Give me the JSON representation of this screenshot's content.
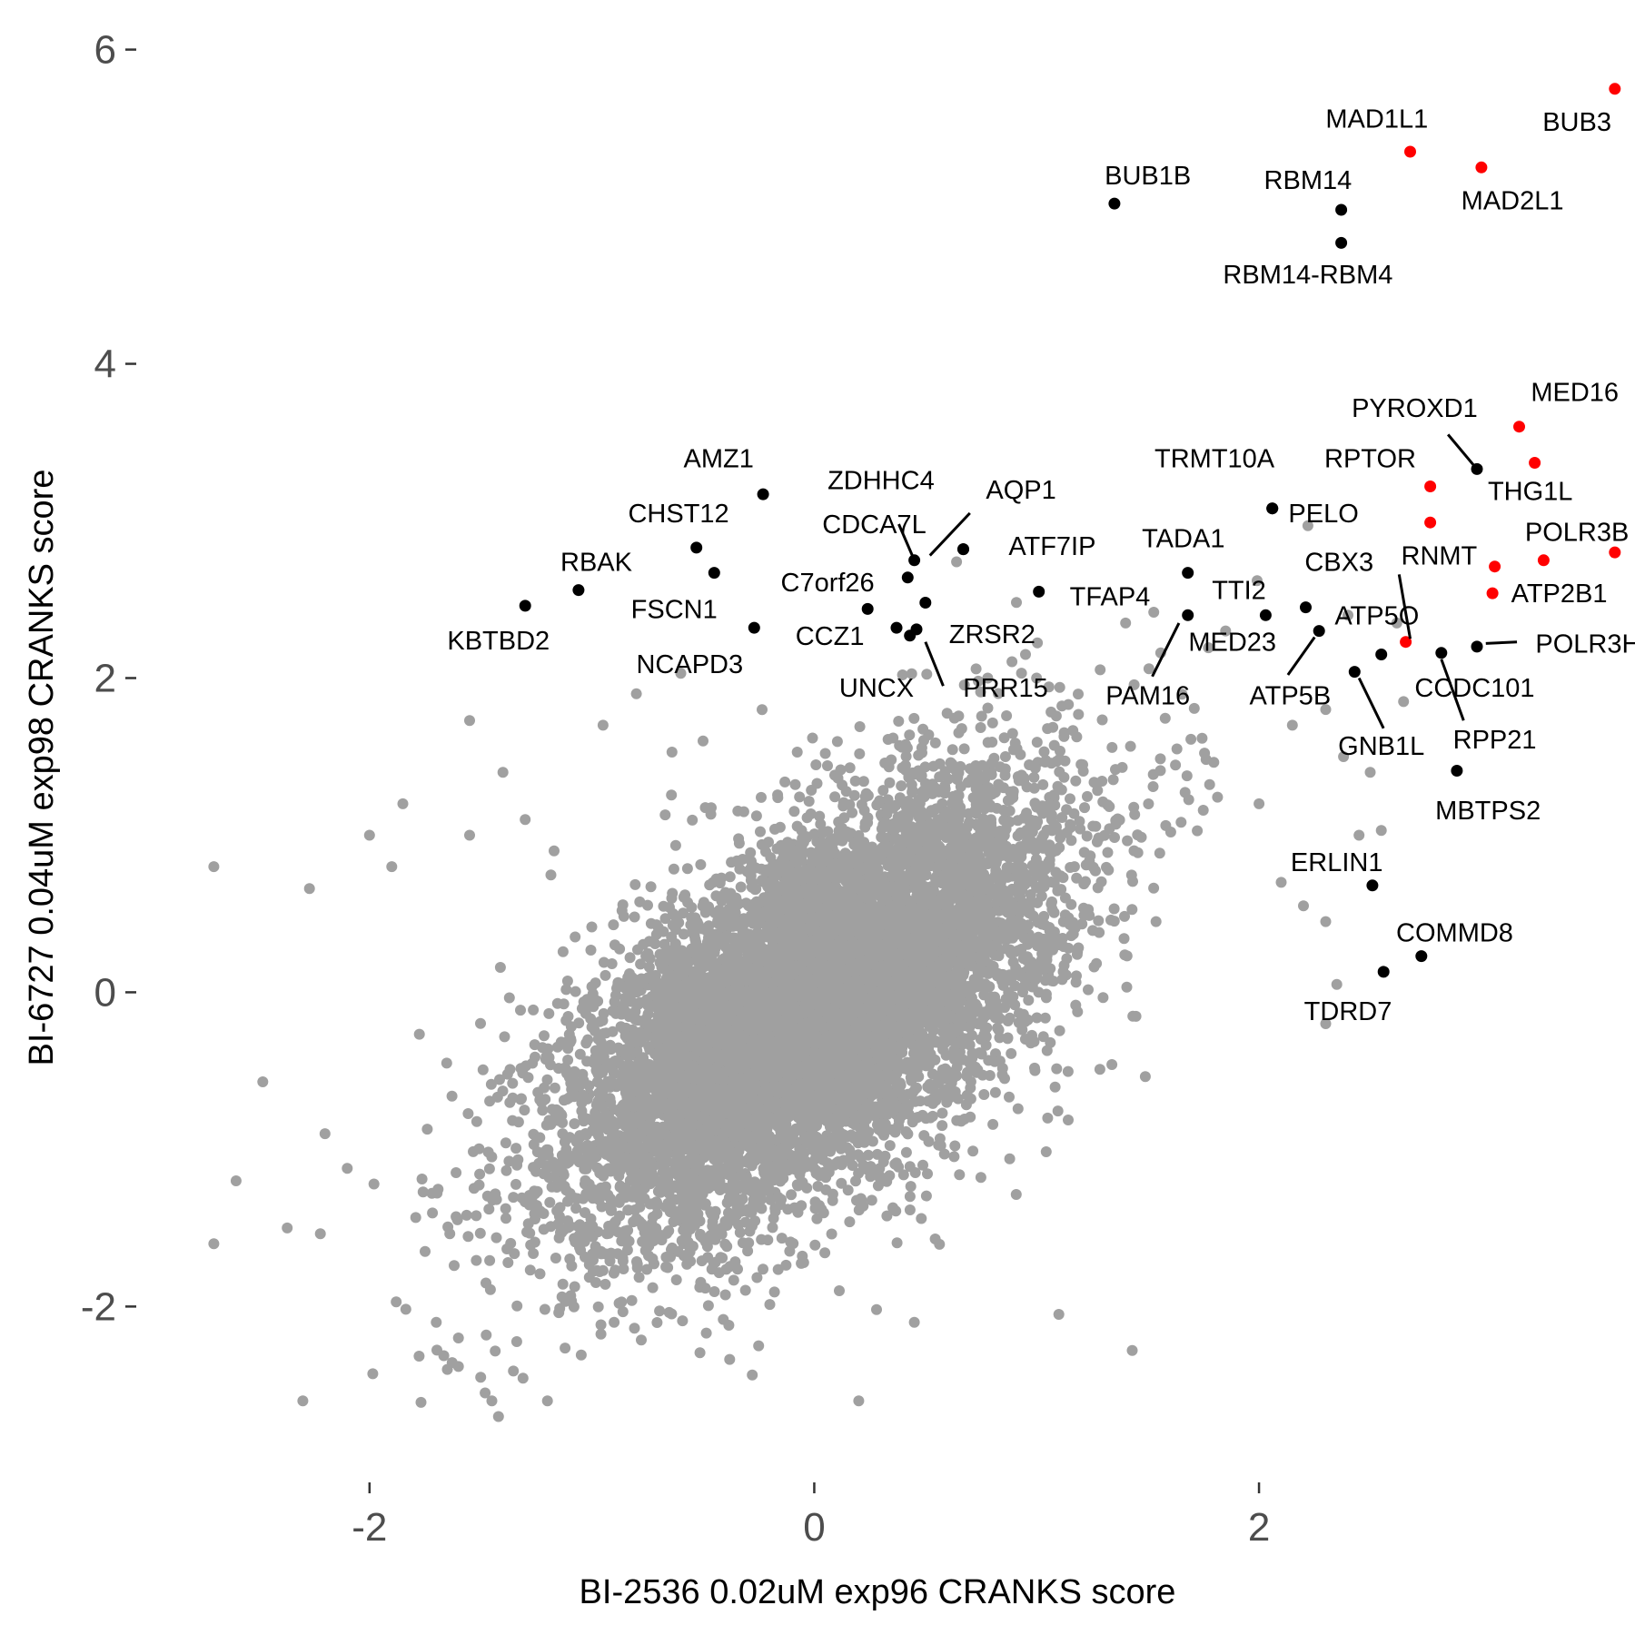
{
  "chart_data": {
    "type": "scatter",
    "title": "",
    "xlabel": "BI-2536 0.02uM exp96 CRANKS score",
    "ylabel": "BI-6727 0.04uM exp98 CRANKS score",
    "xlim": [
      -3.0,
      3.65
    ],
    "ylim": [
      -3.05,
      6.2
    ],
    "xticks": [
      {
        "value": -2,
        "label": "-2"
      },
      {
        "value": 0,
        "label": "0"
      },
      {
        "value": 2,
        "label": "2"
      }
    ],
    "yticks": [
      {
        "value": -2,
        "label": "-2"
      },
      {
        "value": 0,
        "label": "0"
      },
      {
        "value": 2,
        "label": "2"
      },
      {
        "value": 4,
        "label": "4"
      },
      {
        "value": 6,
        "label": "6"
      }
    ],
    "grid": false,
    "legend": "none",
    "colors": {
      "background": "#gray",
      "point": "#a0a0a0",
      "black": "#000000",
      "red": "#ff0000"
    },
    "background_cloud": {
      "description_level": "dense grey cloud of unlabeled genes",
      "center": [
        0.0,
        -0.1
      ],
      "count": 9000
    },
    "background_outliers": [
      [
        -2.7,
        0.8
      ],
      [
        -2.7,
        -1.6
      ],
      [
        -2.6,
        -1.2
      ],
      [
        -2.48,
        -0.57
      ],
      [
        -2.37,
        -1.5
      ],
      [
        -2.3,
        -2.6
      ],
      [
        -2.27,
        0.66
      ],
      [
        -2.2,
        -0.9
      ],
      [
        -2.1,
        -1.12
      ],
      [
        -2.0,
        1.0
      ],
      [
        -1.98,
        -1.22
      ],
      [
        -1.9,
        0.8
      ],
      [
        -1.88,
        -1.97
      ],
      [
        -1.85,
        1.2
      ],
      [
        -1.75,
        -1.65
      ],
      [
        -1.7,
        -2.1
      ],
      [
        -1.65,
        -2.4
      ],
      [
        -1.6,
        -2.2
      ],
      [
        -1.55,
        1.0
      ],
      [
        -1.5,
        -2.45
      ],
      [
        -1.48,
        -2.55
      ],
      [
        -1.45,
        -2.6
      ],
      [
        -1.42,
        -2.7
      ],
      [
        -1.4,
        1.4
      ],
      [
        -1.3,
        1.1
      ],
      [
        -1.2,
        -2.6
      ],
      [
        -1.17,
        0.9
      ],
      [
        -0.95,
        1.7
      ],
      [
        -1.55,
        1.73
      ],
      [
        -0.8,
        1.9
      ],
      [
        -0.6,
        2.03
      ],
      [
        -0.5,
        1.6
      ],
      [
        -0.9,
        -2.1
      ],
      [
        -0.25,
        -2.25
      ],
      [
        0.2,
        -2.6
      ],
      [
        0.28,
        -2.02
      ],
      [
        0.45,
        -2.1
      ],
      [
        1.1,
        -2.05
      ],
      [
        1.43,
        -2.28
      ],
      [
        1.2,
        1.45
      ],
      [
        2.0,
        1.2
      ],
      [
        2.15,
        1.7
      ],
      [
        2.3,
        1.8
      ],
      [
        2.45,
        1.0
      ],
      [
        2.5,
        1.4
      ],
      [
        2.65,
        1.85
      ],
      [
        2.2,
        0.55
      ],
      [
        2.3,
        0.45
      ],
      [
        2.35,
        0.05
      ],
      [
        2.3,
        -0.2
      ],
      [
        2.1,
        0.7
      ],
      [
        2.55,
        1.03
      ],
      [
        2.38,
        1.5
      ],
      [
        2.22,
        2.97
      ],
      [
        2.4,
        2.4
      ],
      [
        2.62,
        2.35
      ],
      [
        0.64,
        2.74
      ],
      [
        1.4,
        2.35
      ],
      [
        1.85,
        2.3
      ],
      [
        0.95,
        2.15
      ],
      [
        0.78,
        2.0
      ],
      [
        1.0,
        2.0
      ]
    ],
    "points": [
      {
        "gene": "BUB3",
        "x": 3.6,
        "y": 5.75,
        "color": "red"
      },
      {
        "gene": "MAD1L1",
        "x": 2.68,
        "y": 5.35,
        "color": "red"
      },
      {
        "gene": "MAD2L1",
        "x": 3.0,
        "y": 5.25,
        "color": "red"
      },
      {
        "gene": "BUB1B",
        "x": 1.35,
        "y": 5.02,
        "color": "black"
      },
      {
        "gene": "RBM14",
        "x": 2.37,
        "y": 4.98,
        "color": "black"
      },
      {
        "gene": "RBM14-RBM4",
        "x": 2.37,
        "y": 4.77,
        "color": "black"
      },
      {
        "gene": "MED16",
        "x": 3.17,
        "y": 3.6,
        "color": "red"
      },
      {
        "gene": "PYROXD1",
        "x": 2.98,
        "y": 3.33,
        "color": "black"
      },
      {
        "gene": "THG1L",
        "x": 3.24,
        "y": 3.37,
        "color": "red"
      },
      {
        "gene": "RPTOR",
        "x": 2.77,
        "y": 3.22,
        "color": "red"
      },
      {
        "gene": "RNMT",
        "x": 2.77,
        "y": 2.99,
        "color": "red"
      },
      {
        "gene": "POLR3B",
        "x": 3.6,
        "y": 2.8,
        "color": "red"
      },
      {
        "gene": "ATP2B1",
        "x": 3.28,
        "y": 2.75,
        "color": "red"
      },
      {
        "gene": "",
        "x": 3.06,
        "y": 2.71,
        "color": "red"
      },
      {
        "gene": "",
        "x": 3.05,
        "y": 2.54,
        "color": "red"
      },
      {
        "gene": "ATP5O",
        "x": 2.66,
        "y": 2.23,
        "color": "red"
      },
      {
        "gene": "TRMT10A",
        "x": 2.06,
        "y": 3.08,
        "color": "black"
      },
      {
        "gene": "PELO",
        "x": 2.06,
        "y": 3.08,
        "color": "black"
      },
      {
        "gene": "AMZ1",
        "x": -0.23,
        "y": 3.17,
        "color": "black"
      },
      {
        "gene": "CHST12",
        "x": -0.53,
        "y": 2.83,
        "color": "black"
      },
      {
        "gene": "",
        "x": -0.45,
        "y": 2.67,
        "color": "black"
      },
      {
        "gene": "RBAK",
        "x": -1.06,
        "y": 2.56,
        "color": "black"
      },
      {
        "gene": "KBTBD2",
        "x": -1.3,
        "y": 2.46,
        "color": "black"
      },
      {
        "gene": "FSCN1",
        "x": -0.27,
        "y": 2.32,
        "color": "black"
      },
      {
        "gene": "ZDHHC4",
        "x": 0.45,
        "y": 2.75,
        "color": "black"
      },
      {
        "gene": "AQP1",
        "x": 0.67,
        "y": 2.82,
        "color": "black"
      },
      {
        "gene": "ATF7IP",
        "x": 0.67,
        "y": 2.82,
        "color": "black"
      },
      {
        "gene": "CDCA7L",
        "x": 0.42,
        "y": 2.64,
        "color": "black"
      },
      {
        "gene": "C7orf26",
        "x": 0.24,
        "y": 2.44,
        "color": "black"
      },
      {
        "gene": "",
        "x": 0.5,
        "y": 2.48,
        "color": "black"
      },
      {
        "gene": "CCZ1",
        "x": 0.37,
        "y": 2.32,
        "color": "black"
      },
      {
        "gene": "ZRSR2",
        "x": 0.46,
        "y": 2.31,
        "color": "black"
      },
      {
        "gene": "UNCX",
        "x": 0.43,
        "y": 2.27,
        "color": "black"
      },
      {
        "gene": "TFAP4",
        "x": 1.01,
        "y": 2.55,
        "color": "black"
      },
      {
        "gene": "TADA1",
        "x": 1.68,
        "y": 2.67,
        "color": "black"
      },
      {
        "gene": "TTI2",
        "x": 1.68,
        "y": 2.4,
        "color": "black"
      },
      {
        "gene": "MED23",
        "x": 2.03,
        "y": 2.4,
        "color": "black"
      },
      {
        "gene": "CBX3",
        "x": 2.21,
        "y": 2.45,
        "color": "black"
      },
      {
        "gene": "ATP5B",
        "x": 2.27,
        "y": 2.3,
        "color": "black"
      },
      {
        "gene": "CCDC101",
        "x": 2.55,
        "y": 2.15,
        "color": "black"
      },
      {
        "gene": "RPP21",
        "x": 2.82,
        "y": 2.16,
        "color": "black"
      },
      {
        "gene": "POLR3H",
        "x": 2.98,
        "y": 2.2,
        "color": "black"
      },
      {
        "gene": "GNB1L",
        "x": 2.43,
        "y": 2.04,
        "color": "black"
      },
      {
        "gene": "MBTPS2",
        "x": 2.89,
        "y": 1.41,
        "color": "black"
      },
      {
        "gene": "ERLIN1",
        "x": 2.51,
        "y": 0.68,
        "color": "black"
      },
      {
        "gene": "COMMD8",
        "x": 2.73,
        "y": 0.23,
        "color": "black"
      },
      {
        "gene": "TDRD7",
        "x": 2.56,
        "y": 0.13,
        "color": "black"
      }
    ],
    "labels": [
      {
        "text": "BUB3",
        "x": 3.43,
        "y": 5.54
      },
      {
        "text": "MAD1L1",
        "x": 2.53,
        "y": 5.56
      },
      {
        "text": "MAD2L1",
        "x": 3.14,
        "y": 5.04
      },
      {
        "text": "BUB1B",
        "x": 1.5,
        "y": 5.2
      },
      {
        "text": "RBM14",
        "x": 2.22,
        "y": 5.17
      },
      {
        "text": "RBM14-RBM4",
        "x": 2.22,
        "y": 4.57
      },
      {
        "text": "MED16",
        "x": 3.42,
        "y": 3.82
      },
      {
        "text": "PYROXD1",
        "x": 2.7,
        "y": 3.72
      },
      {
        "text": "THG1L",
        "x": 3.22,
        "y": 3.19
      },
      {
        "text": "RPTOR",
        "x": 2.5,
        "y": 3.4
      },
      {
        "text": "RNMT",
        "x": 2.81,
        "y": 2.78
      },
      {
        "text": "POLR3B",
        "x": 3.43,
        "y": 2.93
      },
      {
        "text": "ATP2B1",
        "x": 3.35,
        "y": 2.54
      },
      {
        "text": "ATP5O",
        "x": 2.53,
        "y": 2.4
      },
      {
        "text": "TRMT10A",
        "x": 1.8,
        "y": 3.4
      },
      {
        "text": "PELO",
        "x": 2.29,
        "y": 3.05
      },
      {
        "text": "AMZ1",
        "x": -0.43,
        "y": 3.4
      },
      {
        "text": "CHST12",
        "x": -0.61,
        "y": 3.05
      },
      {
        "text": "RBAK",
        "x": -0.98,
        "y": 2.74
      },
      {
        "text": "KBTBD2",
        "x": -1.42,
        "y": 2.24
      },
      {
        "text": "FSCN1",
        "x": -0.63,
        "y": 2.44
      },
      {
        "text": "NCAPD3",
        "x": -0.56,
        "y": 2.09
      },
      {
        "text": "ZDHHC4",
        "x": 0.3,
        "y": 3.26
      },
      {
        "text": "AQP1",
        "x": 0.93,
        "y": 3.2
      },
      {
        "text": "ATF7IP",
        "x": 1.07,
        "y": 2.84
      },
      {
        "text": "CDCA7L",
        "x": 0.27,
        "y": 2.98
      },
      {
        "text": "C7orf26",
        "x": 0.06,
        "y": 2.61
      },
      {
        "text": "CCZ1",
        "x": 0.07,
        "y": 2.27
      },
      {
        "text": "ZRSR2",
        "x": 0.8,
        "y": 2.28
      },
      {
        "text": "UNCX",
        "x": 0.28,
        "y": 1.94
      },
      {
        "text": "PRR15",
        "x": 0.86,
        "y": 1.94
      },
      {
        "text": "TFAP4",
        "x": 1.33,
        "y": 2.52
      },
      {
        "text": "TADA1",
        "x": 1.66,
        "y": 2.89
      },
      {
        "text": "TTI2",
        "x": 1.91,
        "y": 2.56
      },
      {
        "text": "MED23",
        "x": 1.88,
        "y": 2.23
      },
      {
        "text": "PAM16",
        "x": 1.5,
        "y": 1.89
      },
      {
        "text": "CBX3",
        "x": 2.36,
        "y": 2.74
      },
      {
        "text": "ATP5B",
        "x": 2.14,
        "y": 1.89
      },
      {
        "text": "CCDC101",
        "x": 2.97,
        "y": 1.94
      },
      {
        "text": "RPP21",
        "x": 3.06,
        "y": 1.61
      },
      {
        "text": "POLR3H",
        "x": 3.48,
        "y": 2.22
      },
      {
        "text": "GNB1L",
        "x": 2.55,
        "y": 1.57
      },
      {
        "text": "MBTPS2",
        "x": 3.03,
        "y": 1.16
      },
      {
        "text": "ERLIN1",
        "x": 2.35,
        "y": 0.83
      },
      {
        "text": "COMMD8",
        "x": 2.88,
        "y": 0.38
      },
      {
        "text": "TDRD7",
        "x": 2.4,
        "y": -0.12
      }
    ],
    "leaders": [
      [
        2.98,
        3.33,
        2.85,
        3.55
      ],
      [
        0.45,
        2.75,
        0.38,
        2.98
      ],
      [
        0.52,
        2.78,
        0.7,
        3.05
      ],
      [
        0.5,
        2.23,
        0.58,
        1.95
      ],
      [
        1.64,
        2.35,
        1.52,
        2.01
      ],
      [
        2.68,
        2.25,
        2.63,
        2.66
      ],
      [
        2.25,
        2.26,
        2.13,
        2.02
      ],
      [
        2.45,
        2.0,
        2.56,
        1.68
      ],
      [
        2.82,
        2.12,
        2.92,
        1.73
      ],
      [
        3.02,
        2.22,
        3.16,
        2.23
      ]
    ]
  }
}
